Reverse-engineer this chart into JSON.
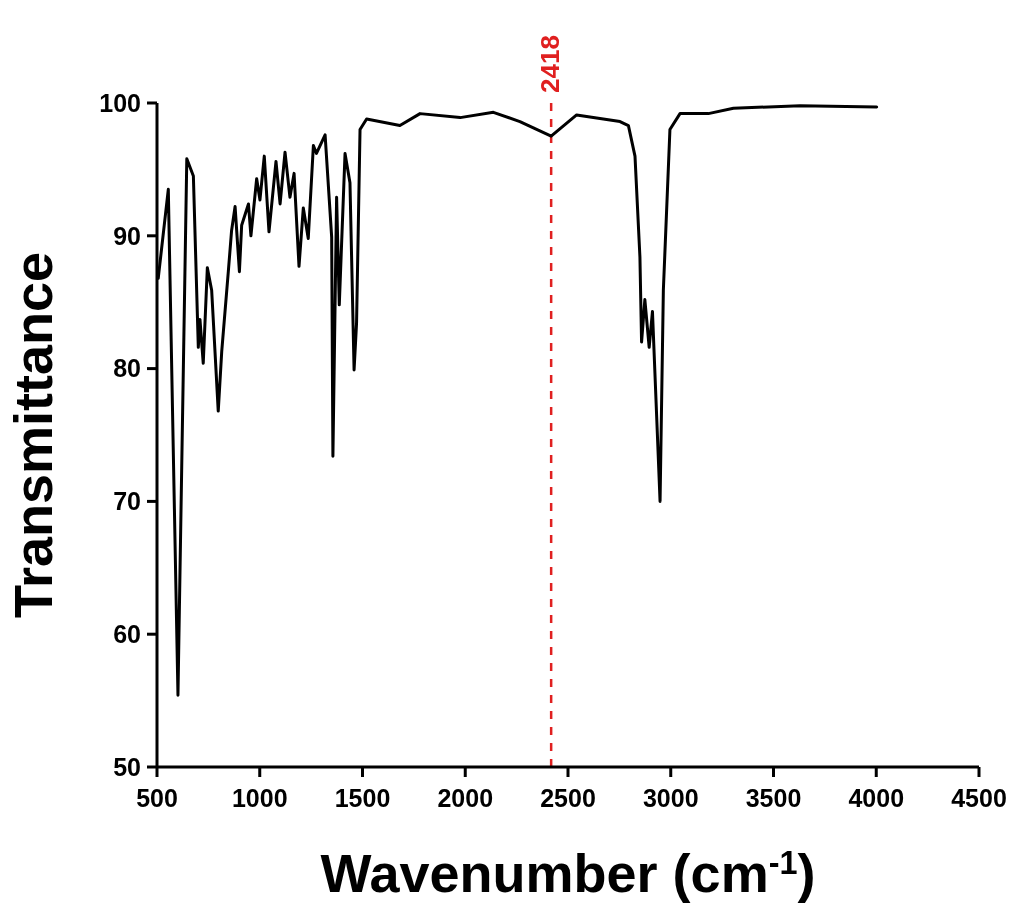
{
  "chart_data": {
    "type": "line",
    "xlabel": "Wavenumber (cm$^{-1}$)",
    "ylabel": "Transmittance",
    "xlim": [
      500,
      4500
    ],
    "xticks": [
      500,
      1000,
      1500,
      2000,
      2500,
      3000,
      3500,
      4000,
      4500
    ],
    "ylim": [
      50,
      100
    ],
    "yticks": [
      50,
      60,
      70,
      80,
      90,
      100
    ],
    "grid": false,
    "series": [
      {
        "color": "#000000",
        "x": [
          506,
          555,
          602,
          645,
          677,
          701,
          709,
          725,
          745,
          766,
          798,
          815,
          847,
          863,
          880,
          901,
          912,
          945,
          957,
          985,
          1001,
          1022,
          1045,
          1079,
          1099,
          1123,
          1147,
          1167,
          1191,
          1212,
          1236,
          1261,
          1276,
          1318,
          1350,
          1356,
          1374,
          1387,
          1415,
          1439,
          1459,
          1471,
          1488,
          1520,
          1682,
          1780,
          1975,
          2137,
          2266,
          2418,
          2542,
          2753,
          2794,
          2826,
          2850,
          2858,
          2874,
          2895,
          2911,
          2948,
          2964,
          2996,
          3045,
          3183,
          3305,
          3629,
          4002
        ],
        "values": [
          86.8,
          93.5,
          55.4,
          95.8,
          94.5,
          81.6,
          83.7,
          80.4,
          87.6,
          85.9,
          76.8,
          81.3,
          87.3,
          90.4,
          92.2,
          87.3,
          90.8,
          92.4,
          90.0,
          94.3,
          92.7,
          96.0,
          90.3,
          95.6,
          92.4,
          96.3,
          92.9,
          94.7,
          87.7,
          92.1,
          89.8,
          96.8,
          96.2,
          97.6,
          89.9,
          73.4,
          92.9,
          84.8,
          96.2,
          94.0,
          79.9,
          83.4,
          98.0,
          98.8,
          98.3,
          99.2,
          98.9,
          99.3,
          98.6,
          97.5,
          99.1,
          98.6,
          98.3,
          96.0,
          88.4,
          82.0,
          85.2,
          81.6,
          84.3,
          70.0,
          85.9,
          98.0,
          99.2,
          99.2,
          99.6,
          99.8,
          99.7
        ]
      }
    ],
    "ref_lines": [
      {
        "axis": "x",
        "value": 2418,
        "label": "2418",
        "color": "#e02020",
        "line_style": "dashed"
      }
    ]
  }
}
